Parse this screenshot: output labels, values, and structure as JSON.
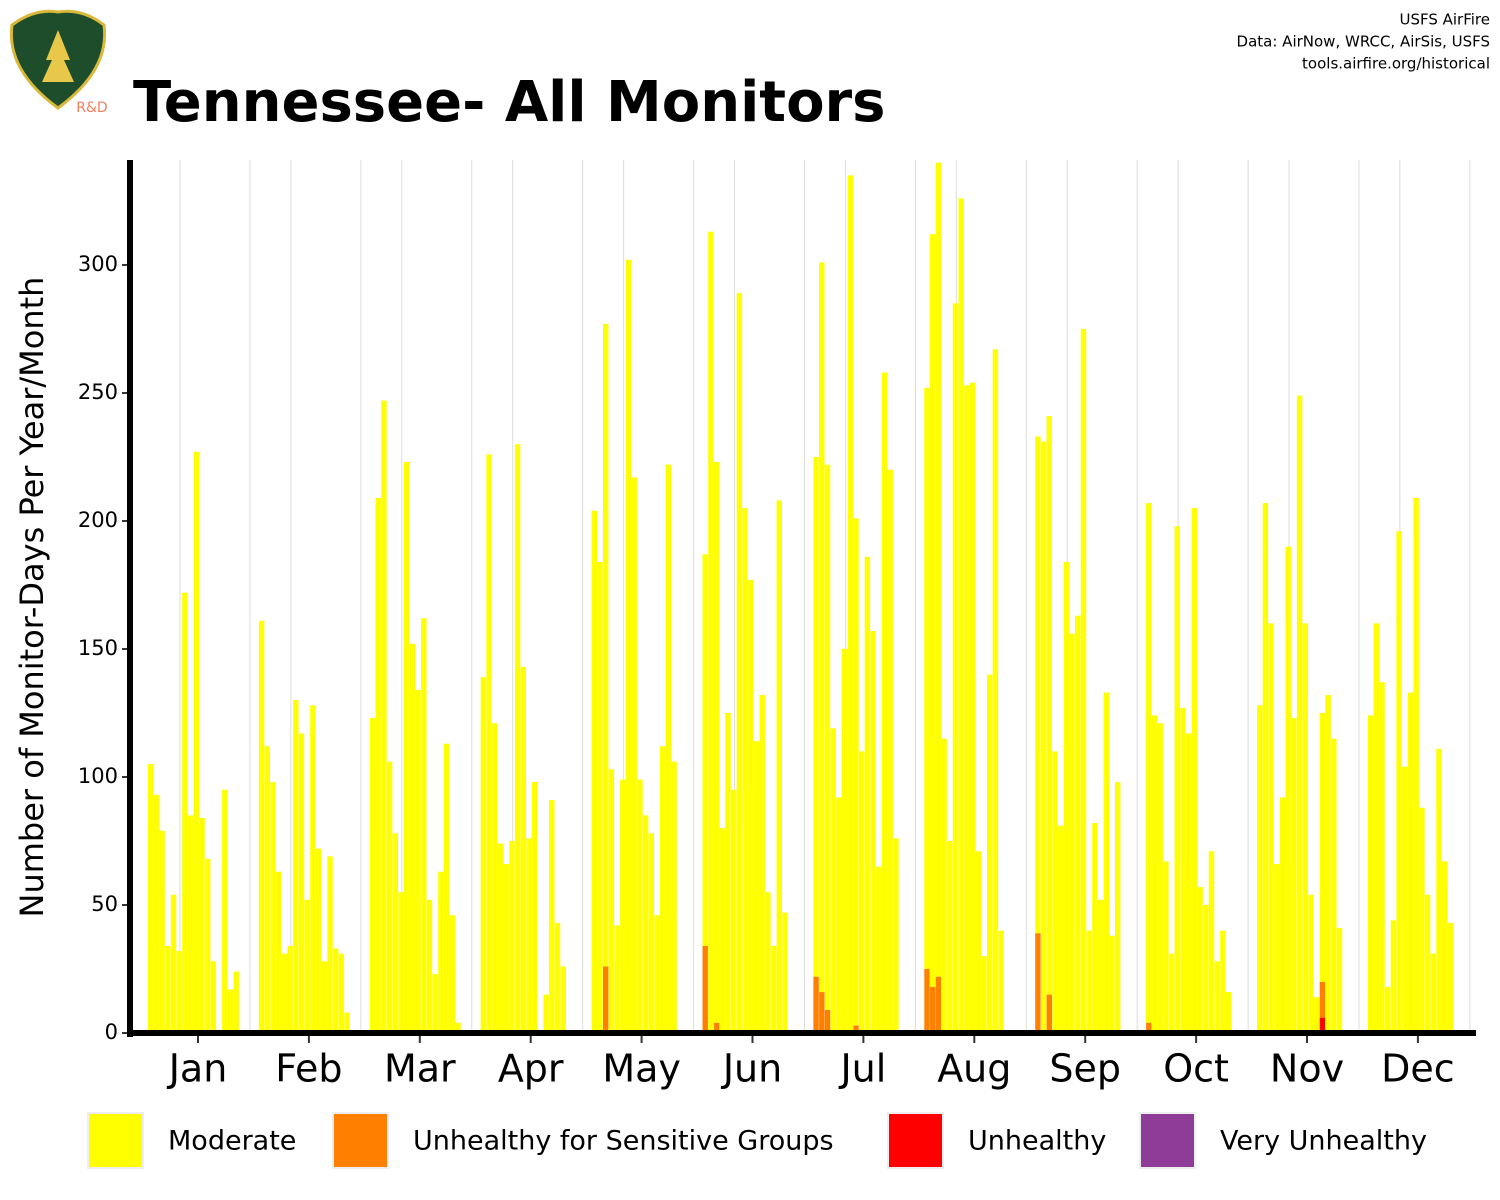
{
  "chart_data": {
    "type": "stacked_bar_groups",
    "title": "Tennessee- All Monitors",
    "credits": [
      "USFS AirFire",
      "Data: AirNow, WRCC, AirSis, USFS",
      "tools.airfire.org/historical"
    ],
    "logo_label": "R&D",
    "y_label": "Number of Monitor-Days Per Year/Month",
    "categories": [
      "Jan",
      "Feb",
      "Mar",
      "Apr",
      "May",
      "Jun",
      "Jul",
      "Aug",
      "Sep",
      "Oct",
      "Nov",
      "Dec"
    ],
    "ylim": [
      0,
      341
    ],
    "yticks": [
      0,
      50,
      100,
      150,
      200,
      250,
      300
    ],
    "series": [
      {
        "name": "Moderate",
        "color": "#ffff00",
        "values": [
          [
            105,
            93,
            79,
            34,
            54,
            32,
            172,
            85,
            227,
            84,
            68,
            28,
            0,
            95,
            17,
            24,
            0,
            0
          ],
          [
            161,
            112,
            98,
            63,
            31,
            34,
            130,
            117,
            52,
            128,
            72,
            28,
            69,
            33,
            31,
            8,
            0,
            0
          ],
          [
            123,
            209,
            247,
            106,
            78,
            55,
            223,
            152,
            134,
            162,
            52,
            23,
            63,
            113,
            46,
            4,
            0,
            0
          ],
          [
            139,
            226,
            121,
            74,
            66,
            75,
            230,
            143,
            76,
            98,
            0,
            15,
            91,
            43,
            26,
            0,
            0,
            0
          ],
          [
            204,
            184,
            251,
            103,
            42,
            99,
            302,
            217,
            99,
            85,
            78,
            46,
            112,
            222,
            106,
            0,
            0,
            0
          ],
          [
            153,
            313,
            219,
            80,
            125,
            95,
            289,
            205,
            177,
            114,
            132,
            55,
            34,
            208,
            47,
            0,
            0,
            0
          ],
          [
            203,
            285,
            213,
            119,
            92,
            150,
            335,
            198,
            110,
            186,
            157,
            65,
            258,
            220,
            76,
            0,
            0,
            0
          ],
          [
            227,
            294,
            318,
            115,
            75,
            285,
            326,
            253,
            254,
            71,
            30,
            140,
            267,
            40,
            0,
            0,
            0,
            0
          ],
          [
            194,
            231,
            226,
            110,
            81,
            184,
            156,
            163,
            275,
            40,
            82,
            52,
            133,
            38,
            98,
            0,
            0,
            0
          ],
          [
            203,
            124,
            121,
            67,
            31,
            198,
            127,
            117,
            205,
            57,
            50,
            71,
            28,
            40,
            16,
            0,
            0,
            0
          ],
          [
            128,
            207,
            160,
            66,
            92,
            190,
            123,
            249,
            160,
            54,
            14,
            105,
            132,
            115,
            41,
            0,
            0,
            0
          ],
          [
            124,
            160,
            137,
            18,
            44,
            196,
            104,
            133,
            209,
            88,
            54,
            31,
            111,
            67,
            43,
            0,
            0,
            0
          ]
        ]
      },
      {
        "name": "Unhealthy for Sensitive Groups",
        "color": "#ff7f00",
        "values": [
          [
            0,
            0,
            0,
            0,
            0,
            0,
            0,
            0,
            0,
            0,
            0,
            0,
            0,
            0,
            0,
            0,
            0,
            0
          ],
          [
            0,
            0,
            0,
            0,
            0,
            0,
            0,
            0,
            0,
            0,
            0,
            0,
            0,
            0,
            0,
            0,
            0,
            0
          ],
          [
            0,
            0,
            0,
            0,
            0,
            0,
            0,
            0,
            0,
            0,
            0,
            0,
            0,
            0,
            0,
            0,
            0,
            0
          ],
          [
            0,
            0,
            0,
            0,
            0,
            0,
            0,
            0,
            0,
            0,
            0,
            0,
            0,
            0,
            0,
            0,
            0,
            0
          ],
          [
            0,
            0,
            26,
            0,
            0,
            0,
            0,
            0,
            0,
            0,
            0,
            0,
            0,
            0,
            0,
            0,
            0,
            0
          ],
          [
            34,
            0,
            4,
            0,
            0,
            0,
            0,
            0,
            0,
            0,
            0,
            0,
            0,
            0,
            0,
            0,
            0,
            0
          ],
          [
            22,
            16,
            9,
            0,
            0,
            0,
            0,
            3,
            0,
            0,
            0,
            0,
            0,
            0,
            0,
            0,
            0,
            0
          ],
          [
            25,
            18,
            22,
            0,
            0,
            0,
            0,
            0,
            0,
            0,
            0,
            0,
            0,
            0,
            0,
            0,
            0,
            0
          ],
          [
            39,
            0,
            15,
            0,
            0,
            0,
            0,
            0,
            0,
            0,
            0,
            0,
            0,
            0,
            0,
            0,
            0,
            0
          ],
          [
            4,
            0,
            0,
            0,
            0,
            0,
            0,
            0,
            0,
            0,
            0,
            0,
            0,
            0,
            0,
            0,
            0,
            0
          ],
          [
            0,
            0,
            0,
            0,
            0,
            0,
            0,
            0,
            0,
            0,
            0,
            14,
            0,
            0,
            0,
            0,
            0,
            0
          ],
          [
            0,
            0,
            0,
            0,
            0,
            0,
            0,
            0,
            0,
            0,
            0,
            0,
            0,
            0,
            0,
            0,
            0,
            0
          ]
        ]
      },
      {
        "name": "Unhealthy",
        "color": "#ff0000",
        "values": [
          [
            0,
            0,
            0,
            0,
            0,
            0,
            0,
            0,
            0,
            0,
            0,
            0,
            0,
            0,
            0,
            0,
            0,
            0
          ],
          [
            0,
            0,
            0,
            0,
            0,
            0,
            0,
            0,
            0,
            0,
            0,
            0,
            0,
            0,
            0,
            0,
            0,
            0
          ],
          [
            0,
            0,
            0,
            0,
            0,
            0,
            0,
            0,
            0,
            0,
            0,
            0,
            0,
            0,
            0,
            0,
            0,
            0
          ],
          [
            0,
            0,
            0,
            0,
            0,
            0,
            0,
            0,
            0,
            0,
            0,
            0,
            0,
            0,
            0,
            0,
            0,
            0
          ],
          [
            0,
            0,
            0,
            0,
            0,
            0,
            0,
            0,
            0,
            0,
            0,
            0,
            0,
            0,
            0,
            0,
            0,
            0
          ],
          [
            0,
            0,
            0,
            0,
            0,
            0,
            0,
            0,
            0,
            0,
            0,
            0,
            0,
            0,
            0,
            0,
            0,
            0
          ],
          [
            0,
            0,
            0,
            0,
            0,
            0,
            0,
            0,
            0,
            0,
            0,
            0,
            0,
            0,
            0,
            0,
            0,
            0
          ],
          [
            0,
            0,
            0,
            0,
            0,
            0,
            0,
            0,
            0,
            0,
            0,
            0,
            0,
            0,
            0,
            0,
            0,
            0
          ],
          [
            0,
            0,
            0,
            0,
            0,
            0,
            0,
            0,
            0,
            0,
            0,
            0,
            0,
            0,
            0,
            0,
            0,
            0
          ],
          [
            0,
            0,
            0,
            0,
            0,
            0,
            0,
            0,
            0,
            0,
            0,
            0,
            0,
            0,
            0,
            0,
            0,
            0
          ],
          [
            0,
            0,
            0,
            0,
            0,
            0,
            0,
            0,
            0,
            0,
            0,
            6,
            0,
            0,
            0,
            0,
            0,
            0
          ],
          [
            0,
            0,
            0,
            0,
            0,
            0,
            0,
            0,
            0,
            0,
            0,
            0,
            0,
            0,
            0,
            0,
            0,
            0
          ]
        ]
      },
      {
        "name": "Very Unhealthy",
        "color": "#8e3c97",
        "values": [
          [
            0,
            0,
            0,
            0,
            0,
            0,
            0,
            0,
            0,
            0,
            0,
            0,
            0,
            0,
            0,
            0,
            0,
            0
          ],
          [
            0,
            0,
            0,
            0,
            0,
            0,
            0,
            0,
            0,
            0,
            0,
            0,
            0,
            0,
            0,
            0,
            0,
            0
          ],
          [
            0,
            0,
            0,
            0,
            0,
            0,
            0,
            0,
            0,
            0,
            0,
            0,
            0,
            0,
            0,
            0,
            0,
            0
          ],
          [
            0,
            0,
            0,
            0,
            0,
            0,
            0,
            0,
            0,
            0,
            0,
            0,
            0,
            0,
            0,
            0,
            0,
            0
          ],
          [
            0,
            0,
            0,
            0,
            0,
            0,
            0,
            0,
            0,
            0,
            0,
            0,
            0,
            0,
            0,
            0,
            0,
            0
          ],
          [
            0,
            0,
            0,
            0,
            0,
            0,
            0,
            0,
            0,
            0,
            0,
            0,
            0,
            0,
            0,
            0,
            0,
            0
          ],
          [
            0,
            0,
            0,
            0,
            0,
            0,
            0,
            0,
            0,
            0,
            0,
            0,
            0,
            0,
            0,
            0,
            0,
            0
          ],
          [
            0,
            0,
            0,
            0,
            0,
            0,
            0,
            0,
            0,
            0,
            0,
            0,
            0,
            0,
            0,
            0,
            0,
            0
          ],
          [
            0,
            0,
            0,
            0,
            0,
            0,
            0,
            0,
            0,
            0,
            0,
            0,
            0,
            0,
            0,
            0,
            0,
            0
          ],
          [
            0,
            0,
            0,
            0,
            0,
            0,
            0,
            0,
            0,
            0,
            0,
            0,
            0,
            0,
            0,
            0,
            0,
            0
          ],
          [
            0,
            0,
            0,
            0,
            0,
            0,
            0,
            0,
            0,
            0,
            0,
            0,
            0,
            0,
            0,
            0,
            0,
            0
          ],
          [
            0,
            0,
            0,
            0,
            0,
            0,
            0,
            0,
            0,
            0,
            0,
            0,
            0,
            0,
            0,
            0,
            0,
            0
          ]
        ]
      }
    ]
  }
}
